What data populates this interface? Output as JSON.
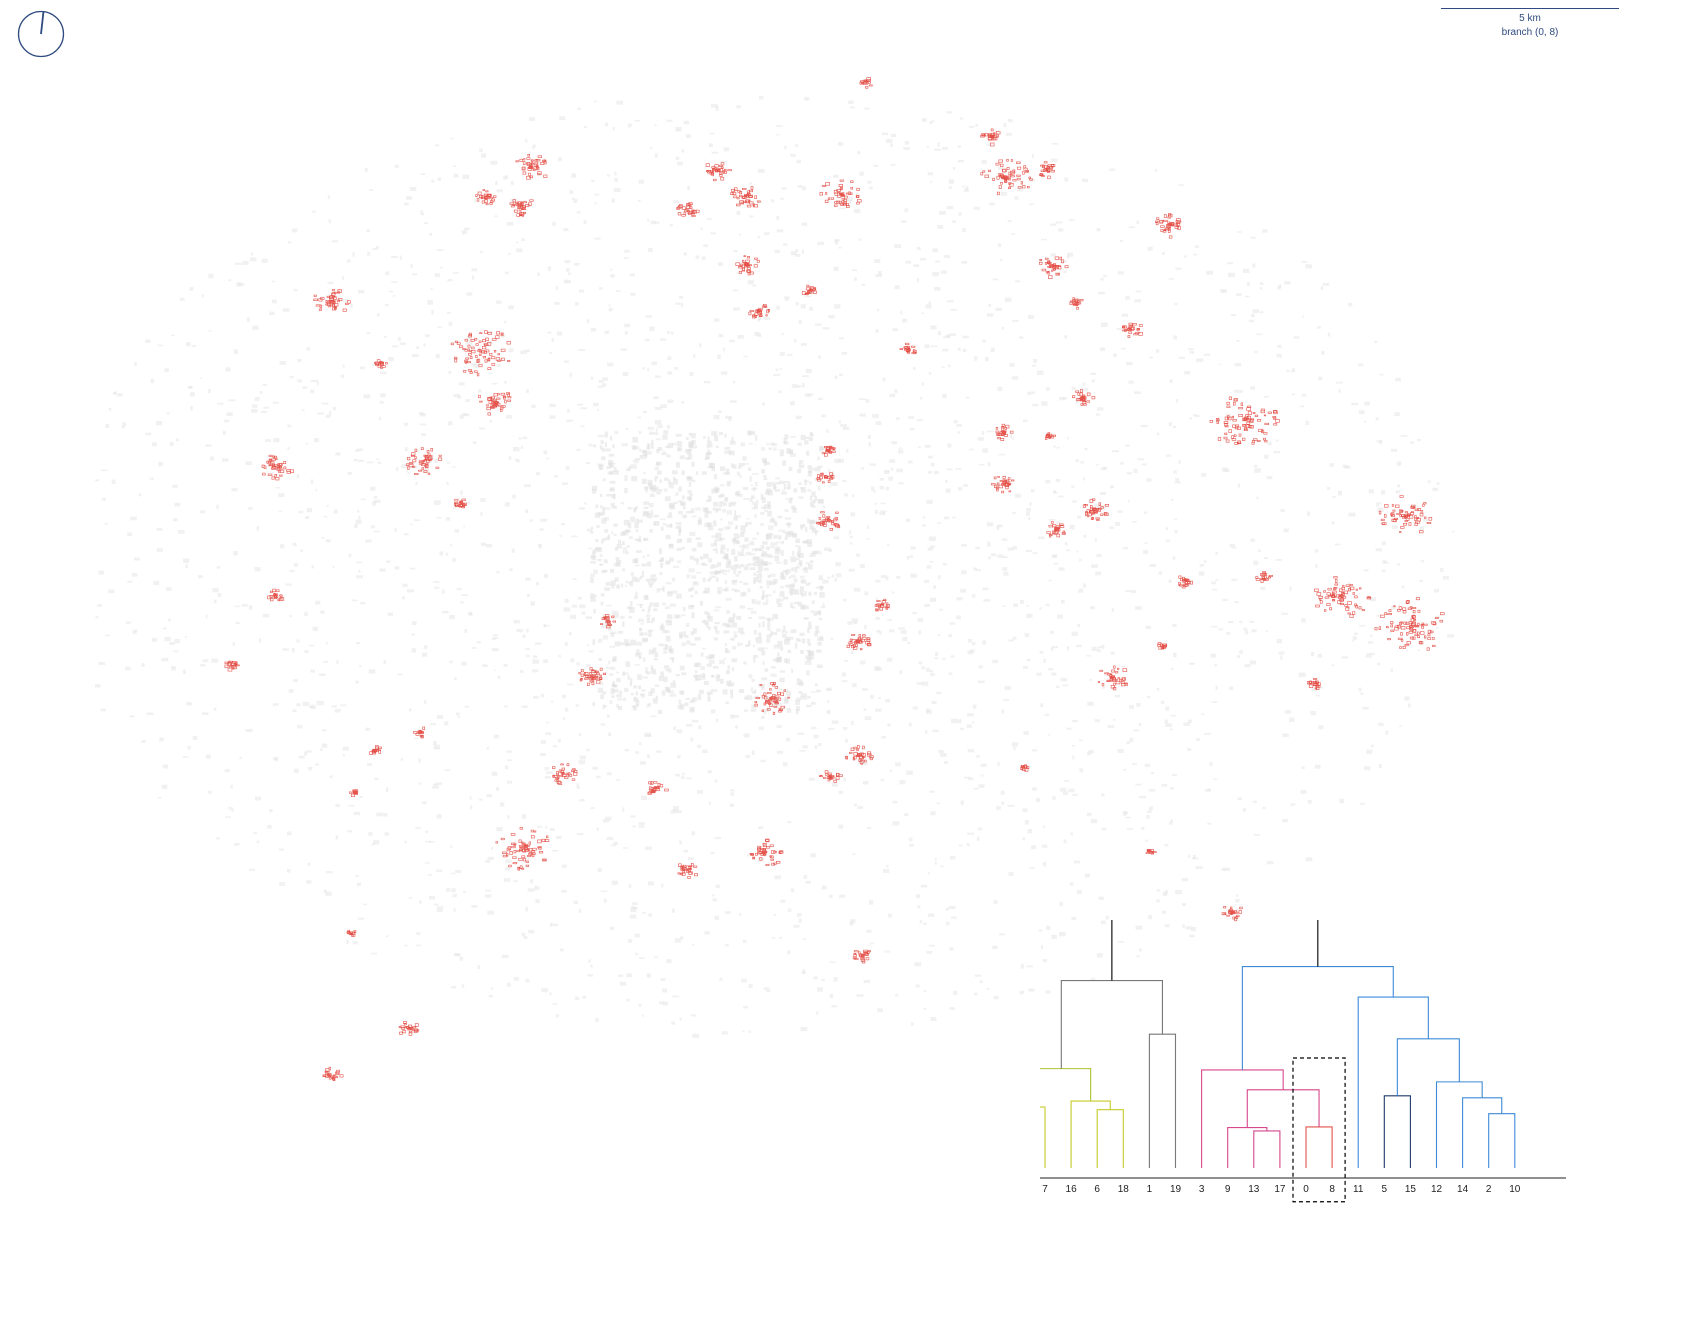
{
  "scale": {
    "distance_label": "5 km",
    "branch_label": "branch (0, 8)"
  },
  "map": {
    "highlight_color": "#e4524a",
    "base_color": "#e6e6e6"
  },
  "chart_data": {
    "type": "dendrogram",
    "leaves": [
      "7",
      "16",
      "6",
      "18",
      "1",
      "19",
      "3",
      "9",
      "13",
      "17",
      "0",
      "8",
      "11",
      "5",
      "15",
      "12",
      "14",
      "2",
      "10"
    ],
    "yticks": [
      0,
      10,
      20,
      30,
      40
    ],
    "ylim": [
      0,
      45
    ],
    "highlighted_branch": [
      "0",
      "8"
    ],
    "links": [
      {
        "left": "7",
        "right": "",
        "height": 9.2,
        "color": "#c6c92a"
      },
      {
        "left": "6",
        "right": "18",
        "height": 8.8,
        "color": "#c6c92a"
      },
      {
        "left": "16",
        "right": "(6,18)",
        "height": 10.1,
        "color": "#c6c92a"
      },
      {
        "left": "(7)",
        "right": "(16,6,18)",
        "height": 15.0,
        "color": "#a9c42e"
      },
      {
        "left": "1",
        "right": "19",
        "height": 20.2,
        "color": "#777777"
      },
      {
        "left": "yellow",
        "right": "(1,19)",
        "height": 28.3,
        "color": "#777777"
      },
      {
        "left": "13",
        "right": "17",
        "height": 5.6,
        "color": "#d6478c"
      },
      {
        "left": "9",
        "right": "(13,17)",
        "height": 6.1,
        "color": "#d6478c"
      },
      {
        "left": "0",
        "right": "8",
        "height": 6.2,
        "color": "#e4524a"
      },
      {
        "left": "(9,13,17)",
        "right": "(0,8)",
        "height": 11.8,
        "color": "#d6478c"
      },
      {
        "left": "3",
        "right": "(9,13,17,0,8)",
        "height": 14.8,
        "color": "#d6478c"
      },
      {
        "left": "5",
        "right": "15",
        "height": 10.9,
        "color": "#1f3a6b"
      },
      {
        "left": "2",
        "right": "10",
        "height": 8.2,
        "color": "#3d8bd8"
      },
      {
        "left": "14",
        "right": "(2,10)",
        "height": 10.6,
        "color": "#3d8bd8"
      },
      {
        "left": "12",
        "right": "(14,2,10)",
        "height": 13.0,
        "color": "#3d8bd8"
      },
      {
        "left": "(5,15)",
        "right": "(12,14,2,10)",
        "height": 19.5,
        "color": "#3d8bd8"
      },
      {
        "left": "11",
        "right": "(5,15,12,14,2,10)",
        "height": 25.8,
        "color": "#3d8bd8"
      },
      {
        "left": "pink",
        "right": "blue",
        "height": 30.4,
        "color": "#3d8bd8"
      },
      {
        "left": "olive",
        "right": "rest",
        "height": 43.6,
        "color": "#000000"
      }
    ]
  }
}
